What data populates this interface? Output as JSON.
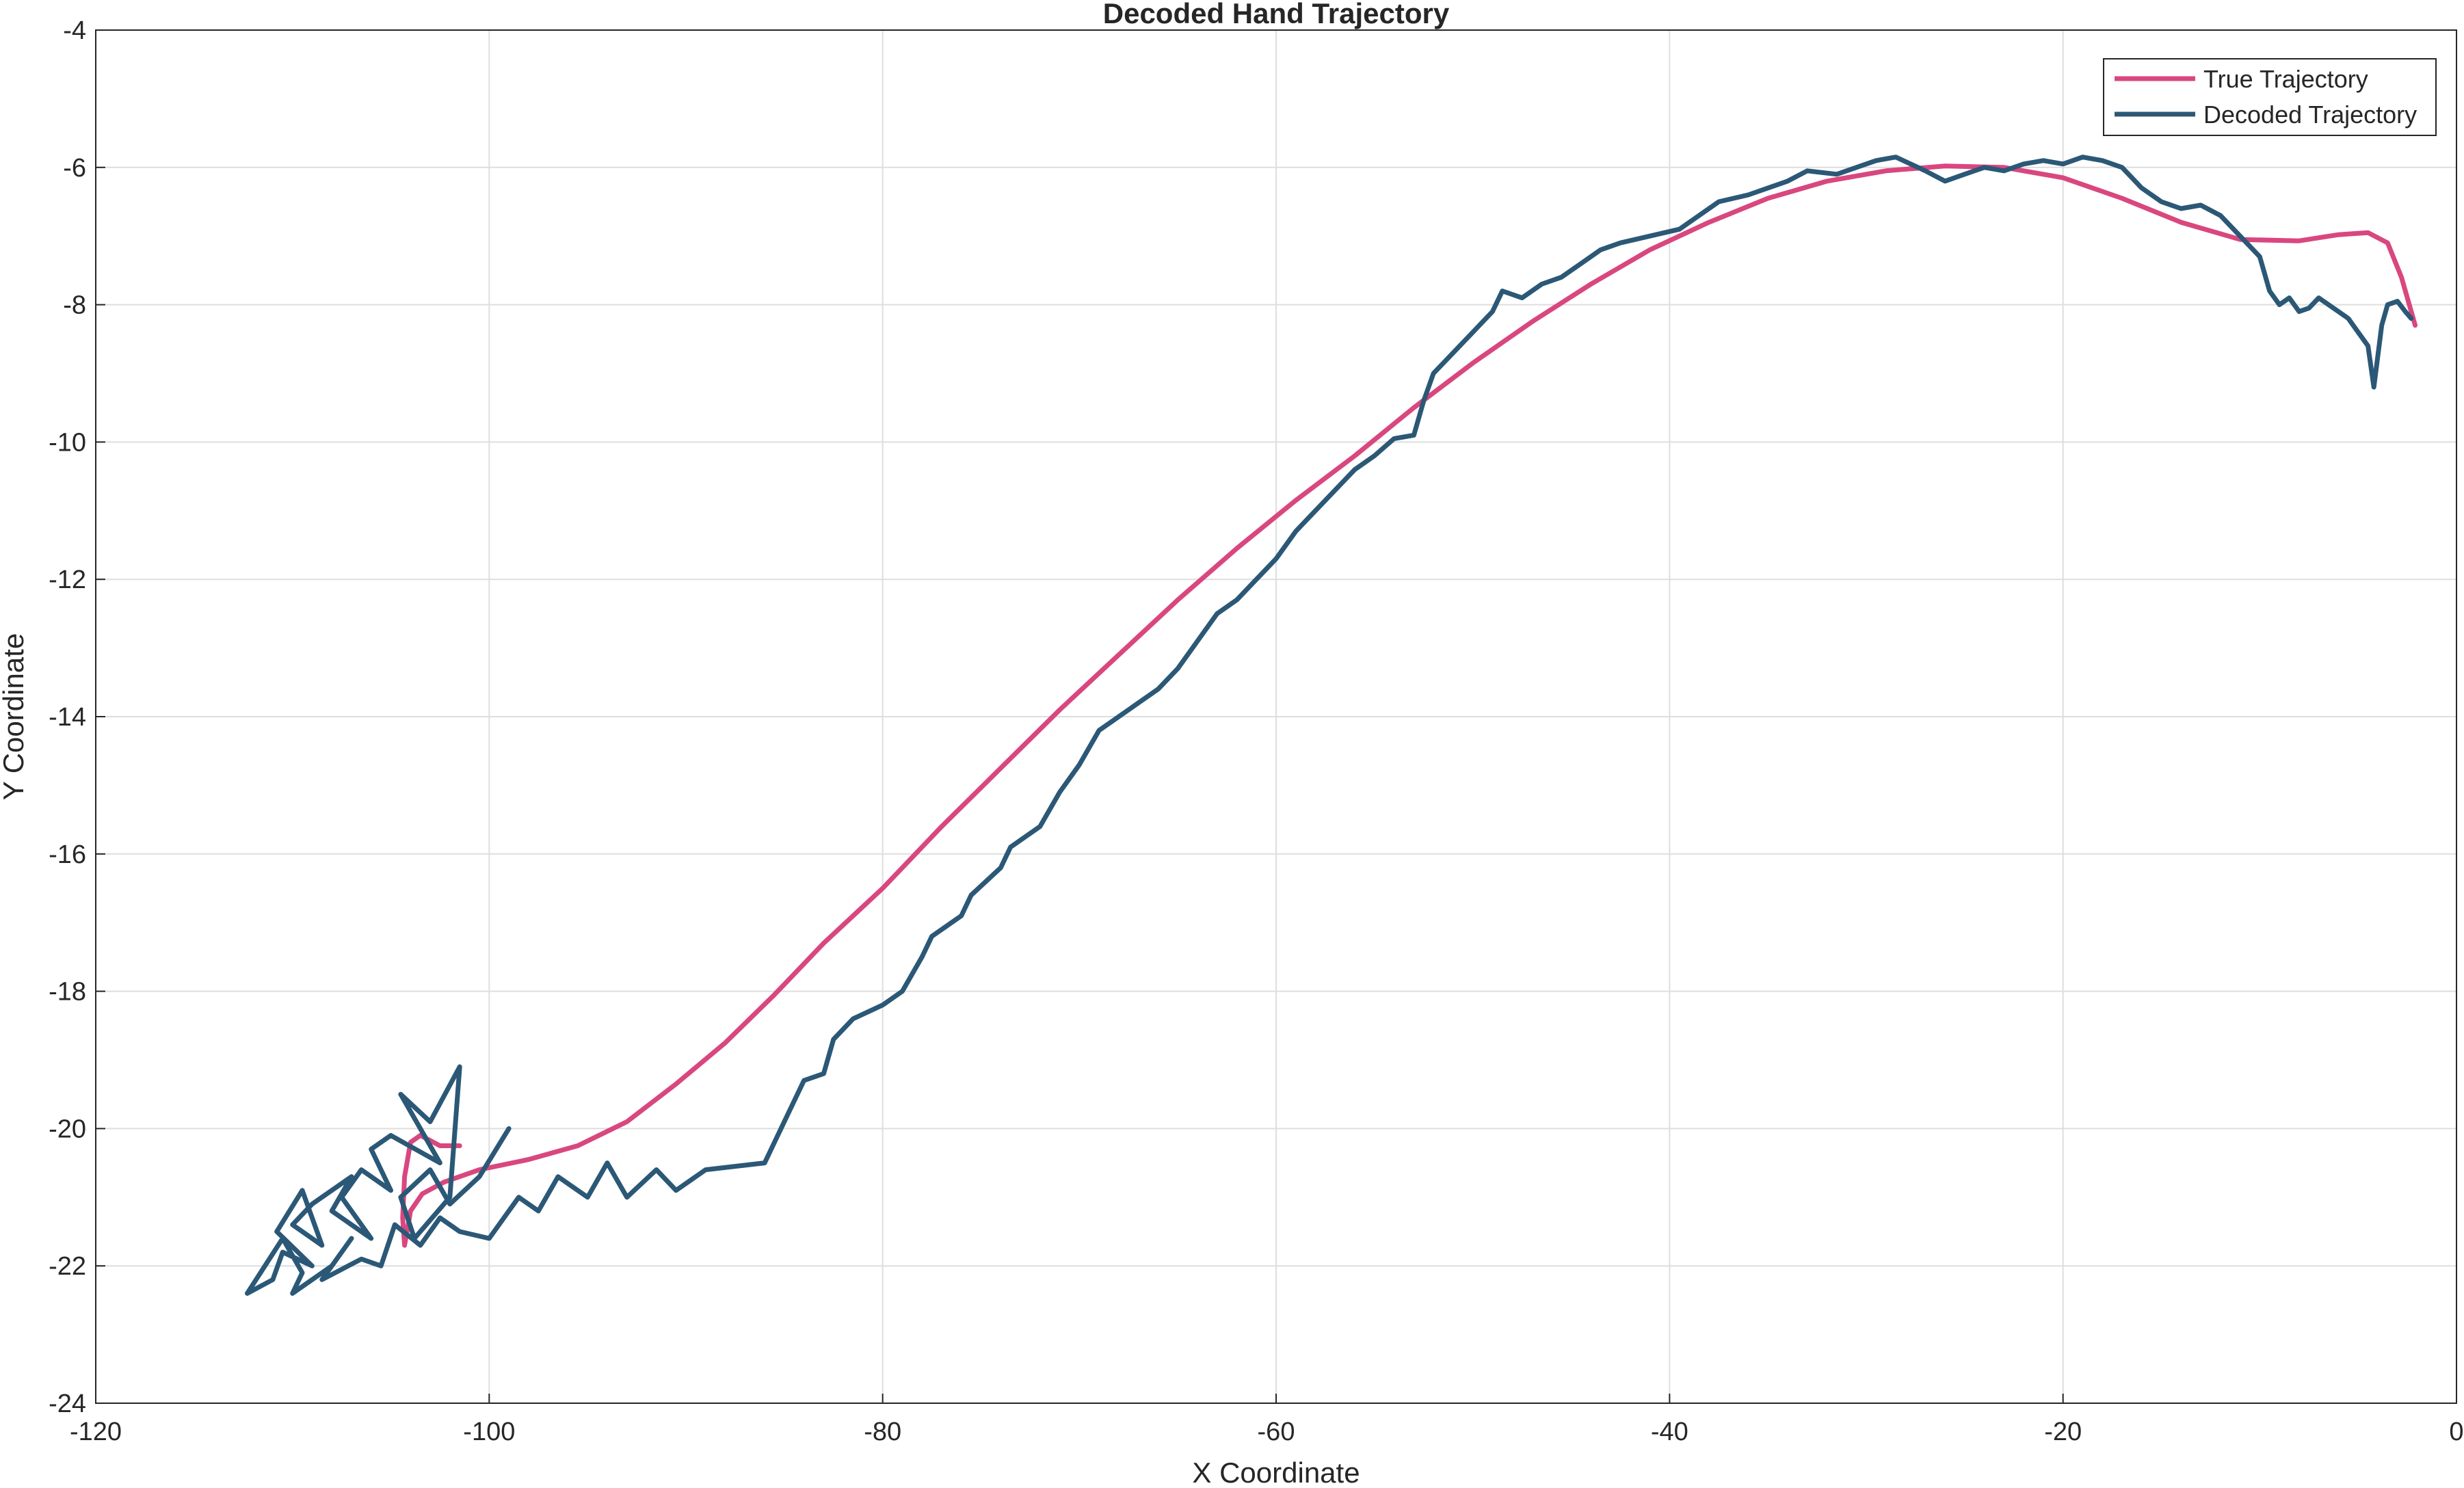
{
  "chart_data": {
    "type": "line",
    "title": "Decoded Hand Trajectory",
    "xlabel": "X Coordinate",
    "ylabel": "Y Coordinate",
    "xlim": [
      -120,
      0
    ],
    "ylim": [
      -24,
      -4
    ],
    "xticks": [
      -120,
      -100,
      -80,
      -60,
      -40,
      -20,
      0
    ],
    "yticks": [
      -24,
      -22,
      -20,
      -18,
      -16,
      -14,
      -12,
      -10,
      -8,
      -6,
      -4
    ],
    "grid": true,
    "legend_position": "top-right",
    "series": [
      {
        "name": "True Trajectory",
        "color": "#d9477f",
        "points": [
          [
            -101.5,
            -20.25
          ],
          [
            -102.5,
            -20.25
          ],
          [
            -103.5,
            -20.1
          ],
          [
            -104.0,
            -20.2
          ],
          [
            -104.3,
            -20.7
          ],
          [
            -104.4,
            -21.3
          ],
          [
            -104.3,
            -21.7
          ],
          [
            -104.0,
            -21.2
          ],
          [
            -103.4,
            -20.95
          ],
          [
            -102.3,
            -20.78
          ],
          [
            -100.5,
            -20.6
          ],
          [
            -98.0,
            -20.45
          ],
          [
            -95.5,
            -20.25
          ],
          [
            -93.0,
            -19.9
          ],
          [
            -90.5,
            -19.35
          ],
          [
            -88.0,
            -18.75
          ],
          [
            -85.5,
            -18.05
          ],
          [
            -83.0,
            -17.3
          ],
          [
            -80.0,
            -16.5
          ],
          [
            -77.0,
            -15.6
          ],
          [
            -74.0,
            -14.75
          ],
          [
            -71.0,
            -13.9
          ],
          [
            -68.0,
            -13.1
          ],
          [
            -65.0,
            -12.3
          ],
          [
            -62.0,
            -11.55
          ],
          [
            -59.0,
            -10.85
          ],
          [
            -56.0,
            -10.2
          ],
          [
            -53.0,
            -9.5
          ],
          [
            -50.0,
            -8.85
          ],
          [
            -47.0,
            -8.25
          ],
          [
            -44.0,
            -7.7
          ],
          [
            -41.0,
            -7.2
          ],
          [
            -38.0,
            -6.8
          ],
          [
            -35.0,
            -6.45
          ],
          [
            -32.0,
            -6.2
          ],
          [
            -29.0,
            -6.05
          ],
          [
            -26.0,
            -5.98
          ],
          [
            -23.0,
            -6.0
          ],
          [
            -20.0,
            -6.15
          ],
          [
            -17.0,
            -6.45
          ],
          [
            -14.0,
            -6.8
          ],
          [
            -11.0,
            -7.05
          ],
          [
            -8.0,
            -7.07
          ],
          [
            -6.0,
            -6.98
          ],
          [
            -4.5,
            -6.95
          ],
          [
            -3.5,
            -7.1
          ],
          [
            -2.8,
            -7.6
          ],
          [
            -2.4,
            -8.0
          ],
          [
            -2.1,
            -8.3
          ]
        ]
      },
      {
        "name": "Decoded Trajectory",
        "color": "#2b5876",
        "points": [
          [
            -99.0,
            -20.0
          ],
          [
            -100.5,
            -20.7
          ],
          [
            -102.0,
            -21.1
          ],
          [
            -103.0,
            -20.6
          ],
          [
            -104.5,
            -21.0
          ],
          [
            -103.8,
            -21.6
          ],
          [
            -102.0,
            -21.0
          ],
          [
            -101.5,
            -19.1
          ],
          [
            -103.0,
            -19.9
          ],
          [
            -104.5,
            -19.5
          ],
          [
            -102.5,
            -20.5
          ],
          [
            -105.0,
            -20.1
          ],
          [
            -106.0,
            -20.3
          ],
          [
            -105.0,
            -20.9
          ],
          [
            -106.5,
            -20.6
          ],
          [
            -107.5,
            -21.0
          ],
          [
            -106.0,
            -21.6
          ],
          [
            -108.0,
            -21.2
          ],
          [
            -107.0,
            -20.7
          ],
          [
            -109.0,
            -21.1
          ],
          [
            -110.0,
            -21.4
          ],
          [
            -108.5,
            -21.7
          ],
          [
            -109.5,
            -20.9
          ],
          [
            -110.8,
            -21.5
          ],
          [
            -109.0,
            -22.0
          ],
          [
            -110.5,
            -21.8
          ],
          [
            -111.0,
            -22.2
          ],
          [
            -112.3,
            -22.4
          ],
          [
            -110.5,
            -21.6
          ],
          [
            -109.5,
            -22.1
          ],
          [
            -110.0,
            -22.4
          ],
          [
            -108.0,
            -22.0
          ],
          [
            -107.0,
            -21.6
          ],
          [
            -108.5,
            -22.2
          ],
          [
            -106.5,
            -21.9
          ],
          [
            -105.5,
            -22.0
          ],
          [
            -104.8,
            -21.4
          ],
          [
            -103.5,
            -21.7
          ],
          [
            -102.5,
            -21.3
          ],
          [
            -101.5,
            -21.5
          ],
          [
            -100.0,
            -21.6
          ],
          [
            -98.5,
            -21.0
          ],
          [
            -97.5,
            -21.2
          ],
          [
            -96.5,
            -20.7
          ],
          [
            -95.0,
            -21.0
          ],
          [
            -94.0,
            -20.5
          ],
          [
            -93.0,
            -21.0
          ],
          [
            -91.5,
            -20.6
          ],
          [
            -90.5,
            -20.9
          ],
          [
            -89.0,
            -20.6
          ],
          [
            -86.0,
            -20.5
          ],
          [
            -85.0,
            -19.9
          ],
          [
            -84.0,
            -19.3
          ],
          [
            -83.0,
            -19.2
          ],
          [
            -82.5,
            -18.7
          ],
          [
            -81.5,
            -18.4
          ],
          [
            -80.0,
            -18.2
          ],
          [
            -79.0,
            -18.0
          ],
          [
            -78.0,
            -17.5
          ],
          [
            -77.5,
            -17.2
          ],
          [
            -76.0,
            -16.9
          ],
          [
            -75.5,
            -16.6
          ],
          [
            -74.0,
            -16.2
          ],
          [
            -73.5,
            -15.9
          ],
          [
            -72.0,
            -15.6
          ],
          [
            -71.0,
            -15.1
          ],
          [
            -70.0,
            -14.7
          ],
          [
            -69.0,
            -14.2
          ],
          [
            -68.0,
            -14.0
          ],
          [
            -67.0,
            -13.8
          ],
          [
            -66.0,
            -13.6
          ],
          [
            -65.0,
            -13.3
          ],
          [
            -64.0,
            -12.9
          ],
          [
            -63.0,
            -12.5
          ],
          [
            -62.0,
            -12.3
          ],
          [
            -61.0,
            -12.0
          ],
          [
            -60.0,
            -11.7
          ],
          [
            -59.0,
            -11.3
          ],
          [
            -58.0,
            -11.0
          ],
          [
            -57.0,
            -10.7
          ],
          [
            -56.0,
            -10.4
          ],
          [
            -55.0,
            -10.2
          ],
          [
            -54.0,
            -9.95
          ],
          [
            -53.0,
            -9.9
          ],
          [
            -52.5,
            -9.4
          ],
          [
            -52.0,
            -9.0
          ],
          [
            -51.0,
            -8.7
          ],
          [
            -50.0,
            -8.4
          ],
          [
            -49.0,
            -8.1
          ],
          [
            -48.5,
            -7.8
          ],
          [
            -47.5,
            -7.9
          ],
          [
            -46.5,
            -7.7
          ],
          [
            -45.5,
            -7.6
          ],
          [
            -44.5,
            -7.4
          ],
          [
            -43.5,
            -7.2
          ],
          [
            -42.5,
            -7.1
          ],
          [
            -41.0,
            -7.0
          ],
          [
            -39.5,
            -6.9
          ],
          [
            -38.5,
            -6.7
          ],
          [
            -37.5,
            -6.5
          ],
          [
            -36.0,
            -6.4
          ],
          [
            -35.0,
            -6.3
          ],
          [
            -34.0,
            -6.2
          ],
          [
            -33.0,
            -6.05
          ],
          [
            -31.5,
            -6.1
          ],
          [
            -30.5,
            -6.0
          ],
          [
            -29.5,
            -5.9
          ],
          [
            -28.5,
            -5.85
          ],
          [
            -27.0,
            -6.05
          ],
          [
            -26.0,
            -6.2
          ],
          [
            -25.0,
            -6.1
          ],
          [
            -24.0,
            -6.0
          ],
          [
            -23.0,
            -6.05
          ],
          [
            -22.0,
            -5.95
          ],
          [
            -21.0,
            -5.9
          ],
          [
            -20.0,
            -5.95
          ],
          [
            -19.0,
            -5.85
          ],
          [
            -18.0,
            -5.9
          ],
          [
            -17.0,
            -6.0
          ],
          [
            -16.0,
            -6.3
          ],
          [
            -15.0,
            -6.5
          ],
          [
            -14.0,
            -6.6
          ],
          [
            -13.0,
            -6.55
          ],
          [
            -12.0,
            -6.7
          ],
          [
            -11.0,
            -7.0
          ],
          [
            -10.0,
            -7.3
          ],
          [
            -9.5,
            -7.8
          ],
          [
            -9.0,
            -8.0
          ],
          [
            -8.5,
            -7.9
          ],
          [
            -8.0,
            -8.1
          ],
          [
            -7.5,
            -8.05
          ],
          [
            -7.0,
            -7.9
          ],
          [
            -6.5,
            -8.0
          ],
          [
            -6.0,
            -8.1
          ],
          [
            -5.5,
            -8.2
          ],
          [
            -5.0,
            -8.4
          ],
          [
            -4.5,
            -8.6
          ],
          [
            -4.2,
            -9.2
          ],
          [
            -3.8,
            -8.3
          ],
          [
            -3.5,
            -8.0
          ],
          [
            -3.0,
            -7.95
          ],
          [
            -2.6,
            -8.1
          ],
          [
            -2.3,
            -8.2
          ]
        ]
      }
    ]
  }
}
